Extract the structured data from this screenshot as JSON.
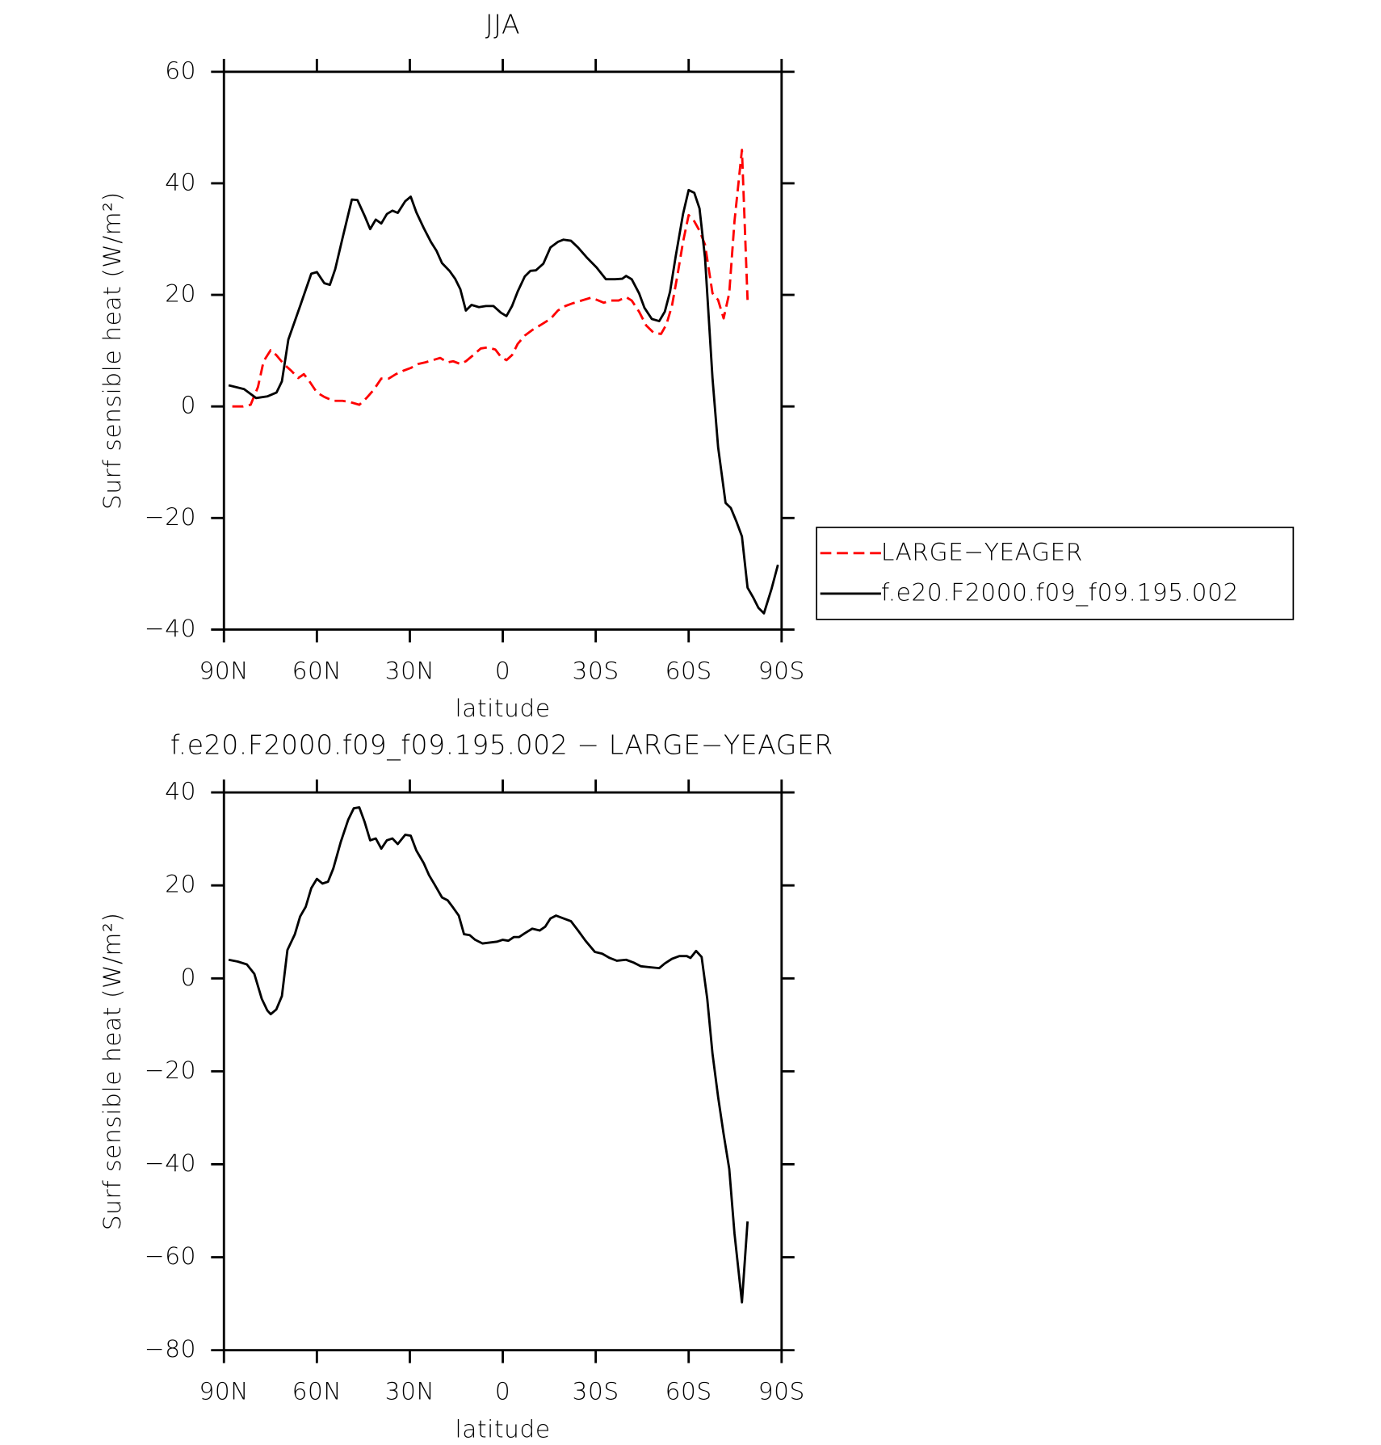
{
  "chart_data": [
    {
      "type": "line",
      "title": "JJA",
      "xlabel": "latitude",
      "ylabel": "Surf sensible heat (W/m²)",
      "xlim": [
        90,
        -90
      ],
      "xticks": [
        {
          "value": 90,
          "label": "90N"
        },
        {
          "value": 60,
          "label": "60N"
        },
        {
          "value": 30,
          "label": "30N"
        },
        0,
        {
          "value": -30,
          "label": "30S"
        },
        {
          "value": -60,
          "label": "60S"
        },
        {
          "value": -90,
          "label": "90S"
        }
      ],
      "ylim": [
        -40,
        60
      ],
      "yticks": [
        {
          "value": -40,
          "label": "−40"
        },
        {
          "value": -20,
          "label": "−20"
        },
        0,
        20,
        40,
        60
      ],
      "legend": "outside right",
      "series": [
        {
          "name": "LARGE−YEAGER",
          "color": "#ff0000",
          "line_style": "dashed",
          "x": [
            87.3,
            83.8,
            81.4,
            79,
            77.2,
            74.9,
            73.1,
            70.7,
            68.3,
            66,
            64.2,
            62.4,
            60,
            57.6,
            54.7,
            51.7,
            49.3,
            46.3,
            44,
            41.6,
            39.2,
            36.8,
            34.5,
            32.1,
            29.7,
            27.3,
            25,
            22.6,
            20.2,
            17.8,
            16,
            13.7,
            11.9,
            9.5,
            7.1,
            4.8,
            2.4,
            0.6,
            -1.2,
            -3,
            -4.8,
            -7.1,
            -9.5,
            -12.5,
            -15.4,
            -17.8,
            -20.2,
            -22.6,
            -25.5,
            -28.5,
            -30.9,
            -32.6,
            -35,
            -37.4,
            -39.8,
            -41.6,
            -44,
            -46.3,
            -48.7,
            -51.1,
            -52.8,
            -54.6,
            -56.4,
            -58.2,
            -60,
            -61.8,
            -63.5,
            -65.3,
            -67.7,
            -69.5,
            -71.3,
            -73.1,
            -74.8,
            -77.2,
            -79
          ],
          "values": [
            0,
            0,
            0.3,
            3.5,
            8.1,
            10.1,
            9.2,
            7.6,
            6.4,
            5.1,
            5.8,
            4.5,
            2.5,
            1.7,
            1,
            1,
            0.8,
            0.3,
            1.5,
            3,
            5,
            5,
            5.8,
            6.4,
            6.9,
            7.6,
            7.9,
            8.3,
            8.7,
            7.9,
            8.1,
            7.6,
            8.1,
            9.2,
            10.4,
            10.6,
            10.2,
            8.9,
            8.3,
            9.2,
            11.2,
            12.7,
            13.7,
            14.7,
            15.7,
            17.2,
            18,
            18.5,
            19,
            19.5,
            19,
            18.6,
            19,
            19,
            19.6,
            19,
            17,
            14.5,
            13.2,
            13,
            14.7,
            18,
            23.6,
            29.5,
            34.3,
            33.2,
            31.5,
            29,
            20.3,
            19.1,
            15.8,
            20.3,
            33.2,
            46,
            19.1
          ]
        },
        {
          "name": "f.e20.F2000.f09_f09.195.002",
          "color": "#000000",
          "line_style": "solid",
          "x": [
            88.5,
            83.5,
            79.6,
            76,
            73,
            71.3,
            69.2,
            65.4,
            61.8,
            60,
            57.6,
            55.8,
            54.1,
            51.7,
            48.7,
            46.9,
            44.6,
            42.8,
            41,
            39.2,
            37.4,
            35.6,
            33.9,
            31.5,
            29.7,
            27.9,
            25.5,
            23.2,
            21.4,
            19.6,
            17.2,
            15.4,
            13.7,
            11.9,
            10.1,
            7.7,
            5.4,
            3,
            0.6,
            -1.2,
            -3,
            -4.8,
            -7.1,
            -8.9,
            -10.7,
            -13.1,
            -15.4,
            -17.8,
            -19.6,
            -22,
            -24.3,
            -27.3,
            -30.3,
            -33.3,
            -36.2,
            -38.6,
            -39.8,
            -41.6,
            -44,
            -45.7,
            -48.1,
            -50.5,
            -52.3,
            -54,
            -55.8,
            -58.2,
            -60,
            -61.8,
            -63.5,
            -65.3,
            -67.7,
            -69.5,
            -71.9,
            -73.6,
            -75.4,
            -77.2,
            -79,
            -80.8,
            -82.5,
            -84.3,
            -86.7,
            -88.8
          ],
          "values": [
            3.8,
            3.1,
            1.5,
            1.8,
            2.5,
            4.5,
            12,
            18,
            23.8,
            24.1,
            22.1,
            21.8,
            24.6,
            30.2,
            37.1,
            37,
            34.2,
            31.8,
            33.5,
            32.8,
            34.5,
            35.1,
            34.7,
            36.8,
            37.6,
            34.8,
            32,
            29.5,
            27.9,
            25.7,
            24.3,
            22.9,
            21,
            17.2,
            18.2,
            17.8,
            18,
            18,
            16.8,
            16.2,
            18,
            20.6,
            23.3,
            24.3,
            24.4,
            25.6,
            28.5,
            29.5,
            29.9,
            29.7,
            28.5,
            26.6,
            24.9,
            22.8,
            22.8,
            22.9,
            23.4,
            22.8,
            20.3,
            17.7,
            15.7,
            15.3,
            17,
            20.6,
            26.9,
            34.5,
            38.8,
            38.3,
            35.5,
            26.6,
            5.1,
            -7.3,
            -17.3,
            -18.2,
            -20.6,
            -23.3,
            -32.5,
            -34.2,
            -36.1,
            -37.1,
            -32.8,
            -28.4
          ]
        }
      ]
    },
    {
      "type": "line",
      "title": "f.e20.F2000.f09_f09.195.002 − LARGE−YEAGER",
      "xlabel": "latitude",
      "ylabel": "Surf sensible heat (W/m²)",
      "xlim": [
        90,
        -90
      ],
      "xticks": [
        {
          "value": 90,
          "label": "90N"
        },
        {
          "value": 60,
          "label": "60N"
        },
        {
          "value": 30,
          "label": "30N"
        },
        0,
        {
          "value": -30,
          "label": "30S"
        },
        {
          "value": -60,
          "label": "60S"
        },
        {
          "value": -90,
          "label": "90S"
        }
      ],
      "ylim": [
        -80,
        40
      ],
      "yticks": [
        {
          "value": -80,
          "label": "−80"
        },
        {
          "value": -60,
          "label": "−60"
        },
        {
          "value": -40,
          "label": "−40"
        },
        {
          "value": -20,
          "label": "−20"
        },
        0,
        20,
        40
      ],
      "series": [
        {
          "color": "#000000",
          "line_style": "solid",
          "x": [
            88.5,
            85.5,
            82.6,
            80.2,
            77.8,
            76,
            74.9,
            73.1,
            71.3,
            69.5,
            67.1,
            65.4,
            63.6,
            61.8,
            60,
            58.2,
            56.4,
            54.7,
            52.3,
            49.9,
            48.1,
            46.3,
            44.6,
            42.8,
            41,
            39.2,
            37.4,
            35.6,
            33.9,
            31.5,
            29.7,
            27.9,
            25.5,
            23.8,
            22,
            19.6,
            17.8,
            16,
            14.2,
            12.5,
            10.7,
            8.9,
            6.5,
            4.2,
            1.8,
            0,
            -1.8,
            -3.6,
            -5.3,
            -7.1,
            -9.5,
            -11.9,
            -13.7,
            -15.4,
            -17.2,
            -19.6,
            -22,
            -24.3,
            -26.7,
            -29.7,
            -32.1,
            -34.5,
            -36.8,
            -39.8,
            -42.2,
            -44.6,
            -47.5,
            -50.5,
            -52.3,
            -54.6,
            -57,
            -59.4,
            -60.6,
            -62.4,
            -64.2,
            -66,
            -67.7,
            -69.5,
            -71.3,
            -73.1,
            -74.8,
            -77.2,
            -79
          ],
          "values": [
            4,
            3.6,
            3,
            1,
            -4.4,
            -6.9,
            -7.7,
            -6.7,
            -3.8,
            6.1,
            9.5,
            13.3,
            15.4,
            19.4,
            21.4,
            20.4,
            20.8,
            23.6,
            29.3,
            34.1,
            36.6,
            36.8,
            33.7,
            29.7,
            30.1,
            27.9,
            29.7,
            30.1,
            28.9,
            30.9,
            30.7,
            27.5,
            24.8,
            22.2,
            20.2,
            17.4,
            16.8,
            15.2,
            13.5,
            9.5,
            9.3,
            8.3,
            7.5,
            7.7,
            7.9,
            8.3,
            8.1,
            8.9,
            8.9,
            9.7,
            10.7,
            10.3,
            11.1,
            12.9,
            13.5,
            12.9,
            12.3,
            10.3,
            8.1,
            5.7,
            5.3,
            4.4,
            3.8,
            4,
            3.4,
            2.6,
            2.4,
            2.2,
            3.2,
            4.2,
            4.8,
            4.8,
            4.4,
            5.9,
            4.6,
            -4.4,
            -16.2,
            -25.5,
            -33.5,
            -41,
            -54.9,
            -69.7,
            -52.3
          ]
        }
      ]
    }
  ]
}
